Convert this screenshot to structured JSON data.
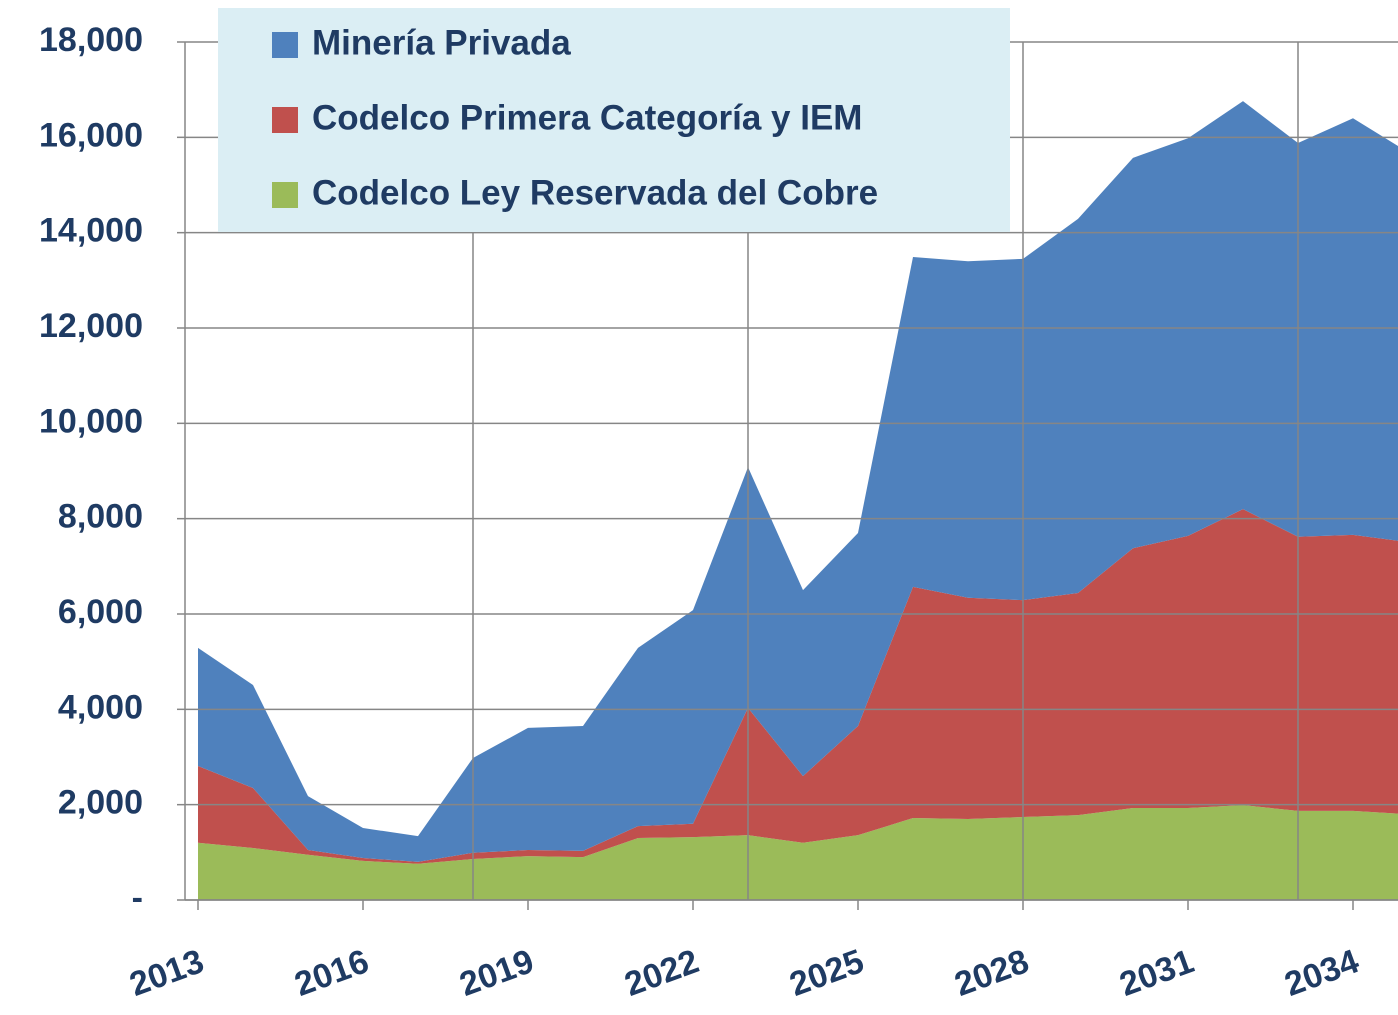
{
  "chart_data": {
    "type": "stacked_area",
    "categories": [
      "2013",
      null,
      null,
      "2016",
      null,
      null,
      "2019",
      null,
      null,
      "2022",
      null,
      null,
      "2025",
      null,
      null,
      "2028",
      null,
      null,
      "2031",
      null,
      null,
      "2034",
      null
    ],
    "series": [
      {
        "name": "Codelco Ley Reservada del Cobre",
        "color": "#9bbb59",
        "values": [
          1200,
          1090,
          950,
          820,
          760,
          860,
          920,
          900,
          1300,
          1320,
          1360,
          1200,
          1360,
          1720,
          1700,
          1740,
          1780,
          1930,
          1930,
          1990,
          1870,
          1870,
          1800
        ]
      },
      {
        "name": "Codelco Primera Categoría y IEM",
        "color": "#c0504d",
        "values": [
          1610,
          1260,
          100,
          60,
          40,
          130,
          130,
          130,
          250,
          280,
          2670,
          1400,
          2290,
          4850,
          4640,
          4550,
          4660,
          5450,
          5710,
          6210,
          5750,
          5790,
          5710
        ]
      },
      {
        "name": "Minería Privada",
        "color": "#4f81bd",
        "values": [
          2480,
          2160,
          1130,
          630,
          540,
          1990,
          2560,
          2620,
          3740,
          4480,
          5050,
          3900,
          4050,
          6920,
          7060,
          7160,
          7850,
          8190,
          8340,
          8560,
          8260,
          8740,
          8180
        ]
      }
    ],
    "ylim": [
      0,
      18000
    ],
    "yticks": [
      {
        "value": 0,
        "label": "-"
      },
      {
        "value": 2000,
        "label": "2,000"
      },
      {
        "value": 4000,
        "label": "4,000"
      },
      {
        "value": 6000,
        "label": "6,000"
      },
      {
        "value": 8000,
        "label": "8,000"
      },
      {
        "value": 10000,
        "label": "10,000"
      },
      {
        "value": 12000,
        "label": "12,000"
      },
      {
        "value": 14000,
        "label": "14,000"
      },
      {
        "value": 16000,
        "label": "16,000"
      },
      {
        "value": 18000,
        "label": "18,000"
      }
    ],
    "grid": true
  }
}
